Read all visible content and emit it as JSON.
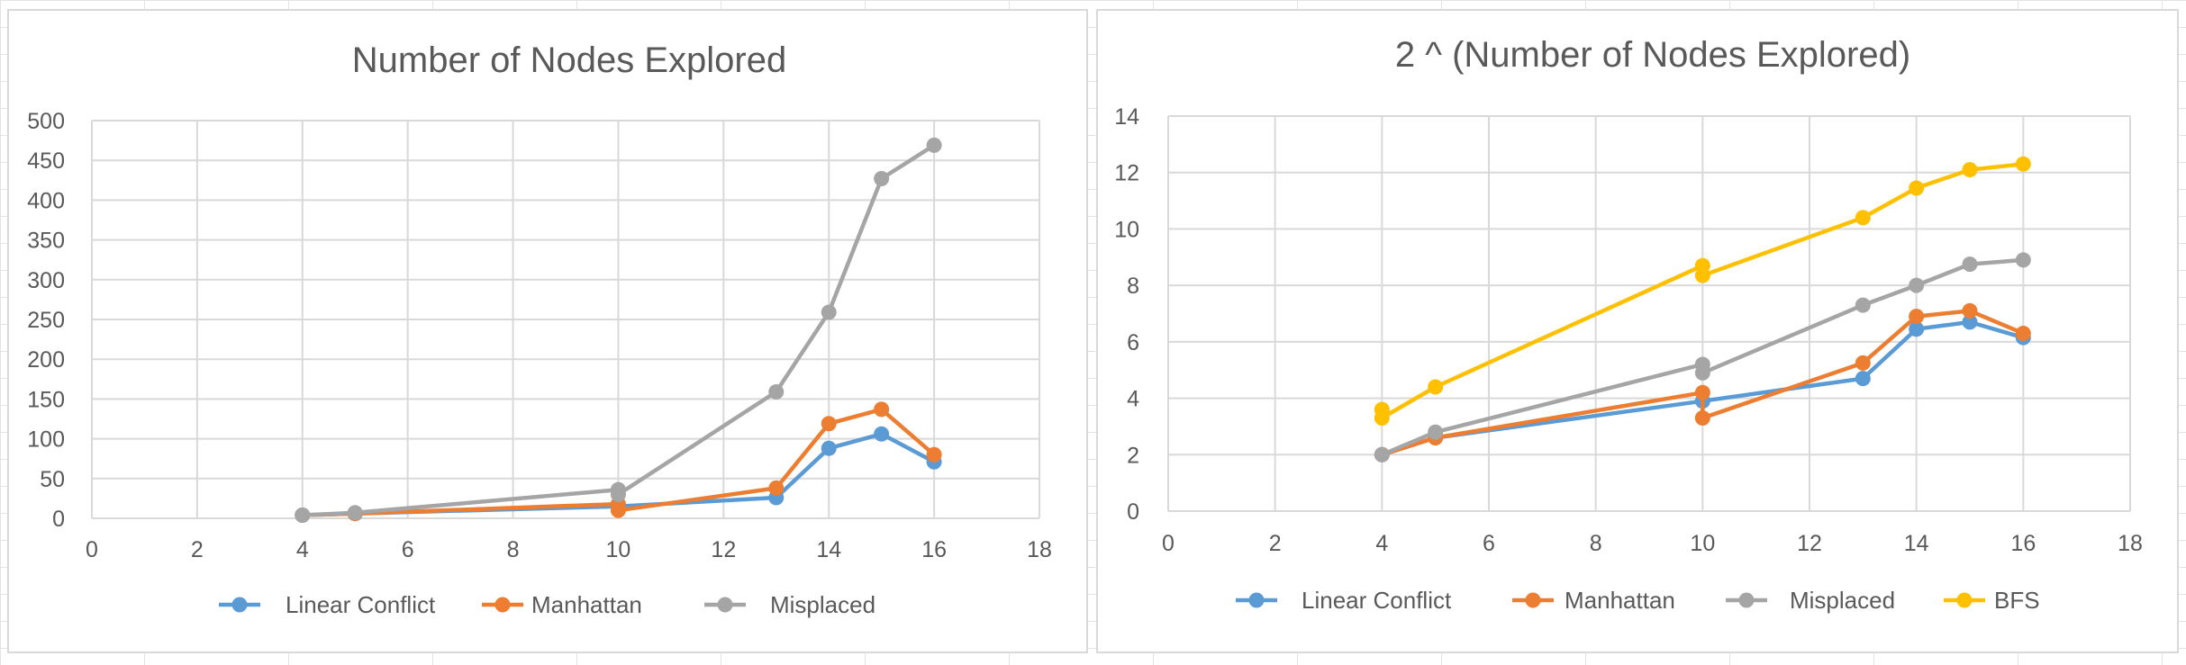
{
  "chart_data": [
    {
      "type": "line",
      "title": "Number of Nodes Explored",
      "xlabel": "",
      "ylabel": "",
      "xlim": [
        0,
        18
      ],
      "ylim": [
        0,
        500
      ],
      "x_ticks": [
        0,
        2,
        4,
        6,
        8,
        10,
        12,
        14,
        16,
        18
      ],
      "y_ticks": [
        0,
        50,
        100,
        150,
        200,
        250,
        300,
        350,
        400,
        450,
        500
      ],
      "grid": true,
      "legend_position": "bottom",
      "series": [
        {
          "name": "Linear Conflict",
          "color": "#5b9bd5",
          "points": [
            [
              4,
              4
            ],
            [
              5,
              6
            ],
            [
              10,
              15
            ],
            [
              13,
              26
            ],
            [
              14,
              88
            ],
            [
              15,
              106
            ],
            [
              16,
              71
            ]
          ]
        },
        {
          "name": "Manhattan",
          "color": "#ed7d31",
          "points": [
            [
              4,
              4
            ],
            [
              5,
              6
            ],
            [
              10,
              18
            ],
            [
              10,
              10
            ],
            [
              13,
              38
            ],
            [
              14,
              119
            ],
            [
              15,
              137
            ],
            [
              16,
              80
            ]
          ]
        },
        {
          "name": "Misplaced",
          "color": "#a5a5a5",
          "points": [
            [
              4,
              4
            ],
            [
              5,
              7
            ],
            [
              10,
              36
            ],
            [
              10,
              30
            ],
            [
              13,
              159
            ],
            [
              14,
              259
            ],
            [
              15,
              427
            ],
            [
              16,
              469
            ]
          ]
        }
      ]
    },
    {
      "type": "line",
      "title": "2 ^ (Number of Nodes Explored)",
      "xlabel": "",
      "ylabel": "",
      "xlim": [
        0,
        18
      ],
      "ylim": [
        0,
        14
      ],
      "x_ticks": [
        0,
        2,
        4,
        6,
        8,
        10,
        12,
        14,
        16,
        18
      ],
      "y_ticks": [
        0,
        2,
        4,
        6,
        8,
        10,
        12,
        14
      ],
      "grid": true,
      "legend_position": "bottom",
      "series": [
        {
          "name": "Linear Conflict",
          "color": "#5b9bd5",
          "points": [
            [
              4,
              2.0
            ],
            [
              5,
              2.6
            ],
            [
              10,
              3.9
            ],
            [
              13,
              4.7
            ],
            [
              14,
              6.45
            ],
            [
              15,
              6.7
            ],
            [
              16,
              6.15
            ]
          ]
        },
        {
          "name": "Manhattan",
          "color": "#ed7d31",
          "points": [
            [
              4,
              2.0
            ],
            [
              5,
              2.6
            ],
            [
              10,
              4.2
            ],
            [
              10,
              3.3
            ],
            [
              13,
              5.25
            ],
            [
              14,
              6.9
            ],
            [
              15,
              7.1
            ],
            [
              16,
              6.3
            ]
          ]
        },
        {
          "name": "Misplaced",
          "color": "#a5a5a5",
          "points": [
            [
              4,
              2.0
            ],
            [
              5,
              2.8
            ],
            [
              10,
              5.2
            ],
            [
              10,
              4.9
            ],
            [
              13,
              7.3
            ],
            [
              14,
              8.0
            ],
            [
              15,
              8.75
            ],
            [
              16,
              8.9
            ]
          ]
        },
        {
          "name": "BFS",
          "color": "#ffc000",
          "points": [
            [
              4,
              3.6
            ],
            [
              4,
              3.3
            ],
            [
              5,
              4.4
            ],
            [
              10,
              8.7
            ],
            [
              10,
              8.35
            ],
            [
              13,
              10.4
            ],
            [
              14,
              11.45
            ],
            [
              15,
              12.1
            ],
            [
              16,
              12.3
            ]
          ]
        }
      ]
    }
  ]
}
